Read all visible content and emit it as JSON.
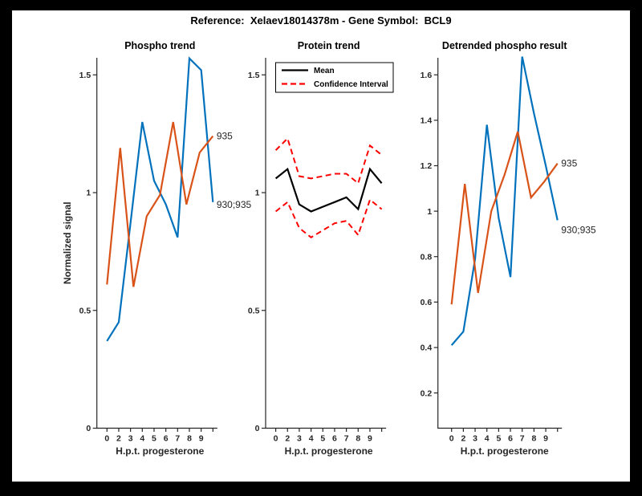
{
  "figure": {
    "title": "Reference:  Xelaev18014378m - Gene Symbol:  BCL9"
  },
  "colors": {
    "blue": "#0072BD",
    "orange": "#D95319",
    "red": "#FF0000",
    "black": "#000000",
    "axis": "#262626",
    "background": "#FFFFFF",
    "frame": "#000000"
  },
  "chart_data": [
    {
      "type": "line",
      "title": "Phospho trend",
      "xlabel": "H.p.t. progesterone",
      "ylabel": "Normalized signal",
      "x_tick_labels": [
        "0",
        "2",
        "3",
        "4",
        "5",
        "6",
        "7",
        "8",
        "9",
        ""
      ],
      "y_ticks": [
        0,
        0.5,
        1,
        1.5
      ],
      "y_tick_labels": [
        "0",
        "0.5",
        "1",
        "1.5"
      ],
      "ylim": [
        0,
        1.5725
      ],
      "grid": false,
      "series": [
        {
          "name": "930;935",
          "color_key": "blue",
          "style": "solid",
          "values": [
            0.37,
            0.45,
            0.87,
            1.3,
            1.05,
            0.95,
            0.81,
            1.57,
            1.52,
            0.96
          ],
          "end_label": "930;935"
        },
        {
          "name": "935",
          "color_key": "orange",
          "style": "solid",
          "values": [
            0.61,
            1.19,
            0.6,
            0.9,
            0.99,
            1.3,
            0.95,
            1.17,
            1.24
          ],
          "end_label": "935"
        }
      ]
    },
    {
      "type": "line",
      "title": "Protein trend",
      "xlabel": "H.p.t. progesterone",
      "ylabel": "",
      "x_tick_labels": [
        "0",
        "2",
        "3",
        "4",
        "5",
        "6",
        "7",
        "8",
        "9",
        ""
      ],
      "y_ticks": [
        0,
        0.5,
        1,
        1.5
      ],
      "y_tick_labels": [
        "0",
        "0.5",
        "1",
        "1.5"
      ],
      "ylim": [
        0,
        1.5725
      ],
      "grid": false,
      "legend": {
        "position": "top-left",
        "items": [
          {
            "label": "Mean",
            "style": "solid",
            "color_key": "black"
          },
          {
            "label": "Confidence Interval",
            "style": "dashed",
            "color_key": "red"
          }
        ]
      },
      "series": [
        {
          "name": "Mean",
          "color_key": "black",
          "style": "solid",
          "values": [
            1.06,
            1.1,
            0.95,
            0.92,
            0.94,
            0.96,
            0.98,
            0.93,
            1.1,
            1.04
          ],
          "end_label": ""
        },
        {
          "name": "CI upper",
          "color_key": "red",
          "style": "dashed",
          "values": [
            1.18,
            1.23,
            1.07,
            1.06,
            1.07,
            1.08,
            1.08,
            1.04,
            1.2,
            1.16
          ],
          "end_label": ""
        },
        {
          "name": "CI lower",
          "color_key": "red",
          "style": "dashed",
          "values": [
            0.92,
            0.96,
            0.85,
            0.81,
            0.84,
            0.87,
            0.88,
            0.82,
            0.97,
            0.93
          ],
          "end_label": ""
        }
      ]
    },
    {
      "type": "line",
      "title": "Detrended phospho result",
      "xlabel": "H.p.t. progesterone",
      "ylabel": "",
      "x_tick_labels": [
        "0",
        "2",
        "3",
        "4",
        "5",
        "6",
        "7",
        "8",
        "9",
        ""
      ],
      "y_ticks": [
        0.2,
        0.4,
        0.6,
        0.8,
        1.0,
        1.2,
        1.4,
        1.6
      ],
      "y_tick_labels": [
        "0.2",
        "0.4",
        "0.6",
        "0.8",
        "1",
        "1.2",
        "1.4",
        "1.6"
      ],
      "ylim": [
        0.045,
        1.675
      ],
      "grid": false,
      "series": [
        {
          "name": "930;935",
          "color_key": "blue",
          "style": "solid",
          "values": [
            0.41,
            0.47,
            0.79,
            1.38,
            0.97,
            0.71,
            1.68,
            1.43,
            1.2,
            0.96
          ],
          "end_label": "930;935"
        },
        {
          "name": "935",
          "color_key": "orange",
          "style": "solid",
          "values": [
            0.59,
            1.12,
            0.64,
            1.0,
            1.16,
            1.35,
            1.06,
            1.13,
            1.21
          ],
          "end_label": "935"
        }
      ]
    }
  ]
}
